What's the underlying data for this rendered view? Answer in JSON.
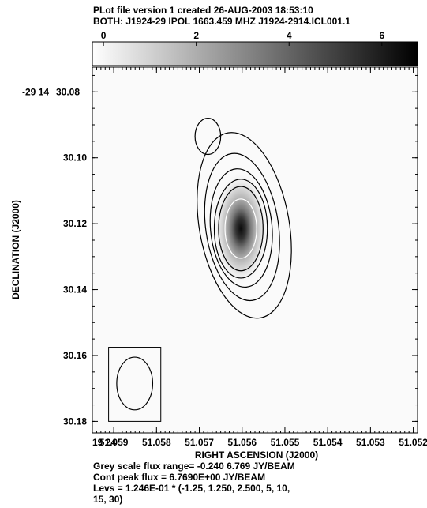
{
  "header": {
    "line1": "PLot file version 1  created 26-AUG-2003 18:53:10",
    "line2": "BOTH: J1924-29  IPOL  1663.459 MHZ  J1924-2914.ICL001.1"
  },
  "footer": {
    "line1": "Grey scale flux range= -0.240 6.769 JY/BEAM",
    "line2": "Cont peak flux =  6.7690E+00 JY/BEAM",
    "line3": "Levs = 1.246E-01 * (-1.25, 1.250, 2.500, 5, 10,",
    "line4": "15, 30)"
  },
  "chart_data": {
    "type": "heatmap",
    "title": "",
    "xlabel": "RIGHT ASCENSION (J2000)",
    "ylabel": "DECLINATION (J2000)",
    "x_tick_prefix": "19 24",
    "x_ticks": [
      {
        "value": 51.059,
        "label": "51.059"
      },
      {
        "value": 51.058,
        "label": "51.058"
      },
      {
        "value": 51.057,
        "label": "51.057"
      },
      {
        "value": 51.056,
        "label": "51.056"
      },
      {
        "value": 51.055,
        "label": "51.055"
      },
      {
        "value": 51.054,
        "label": "51.054"
      },
      {
        "value": 51.053,
        "label": "51.053"
      },
      {
        "value": 51.052,
        "label": "51.052"
      }
    ],
    "y_tick_prefix": "-29 14",
    "y_ticks": [
      {
        "value": 30.08,
        "label": "30.08"
      },
      {
        "value": 30.1,
        "label": "30.10"
      },
      {
        "value": 30.12,
        "label": "30.12"
      },
      {
        "value": 30.14,
        "label": "30.14"
      },
      {
        "value": 30.16,
        "label": "30.16"
      },
      {
        "value": 30.18,
        "label": "30.18"
      }
    ],
    "xlim": [
      51.0595,
      51.0519
    ],
    "ylim": [
      30.0725,
      30.1835
    ],
    "colorbar": {
      "range": [
        -0.24,
        6.769
      ],
      "ticks": [
        {
          "value": 0,
          "label": "0"
        },
        {
          "value": 2,
          "label": "2"
        },
        {
          "value": 4,
          "label": "4"
        },
        {
          "value": 6,
          "label": "6"
        }
      ]
    },
    "source": {
      "ra": 51.05603,
      "dec": 30.1215,
      "peak": 6.769
    },
    "contours": [
      {
        "level": 0.1558,
        "ra": 51.05595,
        "dec": 30.1205,
        "ra_halfwidth": 0.00105,
        "dec_halfwidth": 0.0285,
        "tilt_deg": -10,
        "shade": "#000000"
      },
      {
        "level": 0.3115,
        "ra": 51.056,
        "dec": 30.121,
        "ra_halfwidth": 0.00085,
        "dec_halfwidth": 0.0225,
        "tilt_deg": -8,
        "shade": "#000000"
      },
      {
        "level": 0.623,
        "ra": 51.05602,
        "dec": 30.1213,
        "ra_halfwidth": 0.00072,
        "dec_halfwidth": 0.018,
        "tilt_deg": -5,
        "shade": "#000000"
      },
      {
        "level": 1.246,
        "ra": 51.05603,
        "dec": 30.1215,
        "ra_halfwidth": 0.00062,
        "dec_halfwidth": 0.015,
        "tilt_deg": 0,
        "shade": "#000000"
      },
      {
        "level": 1.869,
        "ra": 51.05603,
        "dec": 30.1215,
        "ra_halfwidth": 0.00052,
        "dec_halfwidth": 0.0128,
        "tilt_deg": 0,
        "shade": "#000000"
      },
      {
        "level": 3.738,
        "ra": 51.05603,
        "dec": 30.1215,
        "ra_halfwidth": 0.00037,
        "dec_halfwidth": 0.009,
        "tilt_deg": 0,
        "shade": "#ffffff"
      },
      {
        "level": 0.1558,
        "ra": 51.0568,
        "dec": 30.0935,
        "ra_halfwidth": 0.0003,
        "dec_halfwidth": 0.0055,
        "tilt_deg": 0,
        "shade": "#000000"
      }
    ],
    "beam": {
      "ra": 51.05851,
      "dec": 30.1685,
      "ra_halfwidth": 0.00042,
      "dec_halfwidth": 0.008,
      "box": {
        "ra0": 51.05912,
        "ra1": 51.0579,
        "dec0": 30.1575,
        "dec1": 30.18
      }
    }
  }
}
